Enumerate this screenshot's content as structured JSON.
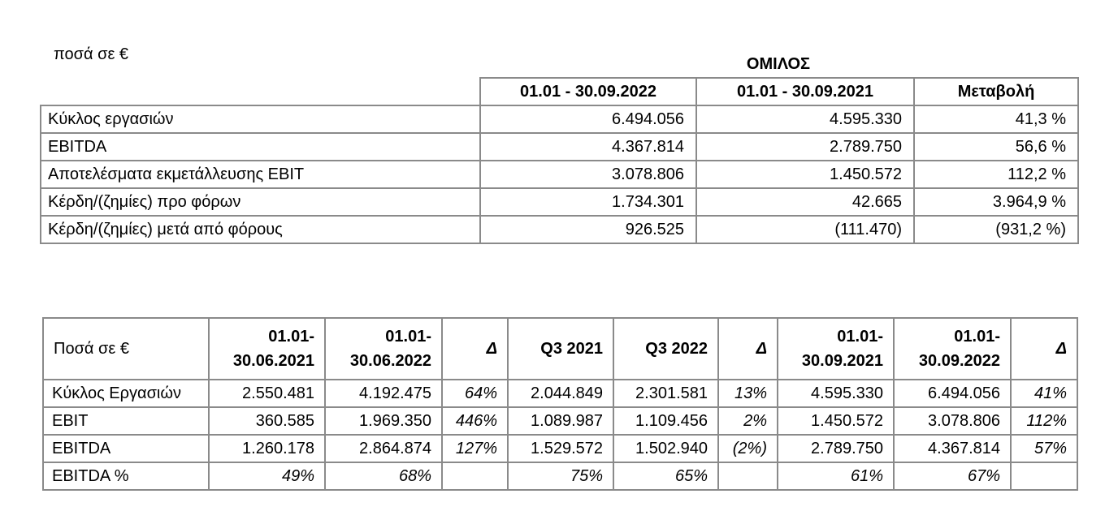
{
  "summary": {
    "note": "ποσά σε €",
    "group_title": "ΟΜΙΛΟΣ",
    "headers": [
      "01.01 - 30.09.2022",
      "01.01 - 30.09.2021",
      "Μεταβολή"
    ],
    "rows": [
      {
        "label": "Κύκλος εργασιών",
        "values": [
          "6.494.056",
          "4.595.330",
          "41,3 %"
        ]
      },
      {
        "label": "EBITDA",
        "values": [
          "4.367.814",
          "2.789.750",
          "56,6 %"
        ]
      },
      {
        "label": "Αποτελέσματα εκμετάλλευσης EBIT",
        "values": [
          "3.078.806",
          "1.450.572",
          "112,2 %"
        ]
      },
      {
        "label": "Κέρδη/(ζημίες) προ φόρων",
        "values": [
          "1.734.301",
          "42.665",
          "3.964,9 %"
        ]
      },
      {
        "label": "Κέρδη/(ζημίες) μετά από φόρους",
        "values": [
          "926.525",
          "(111.470)",
          "(931,2 %)"
        ]
      }
    ]
  },
  "quarterly": {
    "corner_label": "Ποσά σε €",
    "headers": [
      {
        "line1": "01.01-",
        "line2": "30.06.2021"
      },
      {
        "line1": "01.01-",
        "line2": "30.06.2022"
      },
      {
        "line1": "Δ",
        "line2": ""
      },
      {
        "line1": "Q3 2021",
        "line2": ""
      },
      {
        "line1": "Q3 2022",
        "line2": ""
      },
      {
        "line1": "Δ",
        "line2": ""
      },
      {
        "line1": "01.01-",
        "line2": "30.09.2021"
      },
      {
        "line1": "01.01-",
        "line2": "30.09.2022"
      },
      {
        "line1": "Δ",
        "line2": ""
      }
    ],
    "rows": [
      {
        "label": "Κύκλος Εργασιών",
        "values": [
          "2.550.481",
          "4.192.475",
          "64%",
          "2.044.849",
          "2.301.581",
          "13%",
          "4.595.330",
          "6.494.056",
          "41%"
        ]
      },
      {
        "label": "EBIT",
        "values": [
          "360.585",
          "1.969.350",
          "446%",
          "1.089.987",
          "1.109.456",
          "2%",
          "1.450.572",
          "3.078.806",
          "112%"
        ]
      },
      {
        "label": "EBITDA",
        "values": [
          "1.260.178",
          "2.864.874",
          "127%",
          "1.529.572",
          "1.502.940",
          "(2%)",
          "2.789.750",
          "4.367.814",
          "57%"
        ]
      },
      {
        "label": "EBITDA %",
        "values": [
          "49%",
          "68%",
          "",
          "75%",
          "65%",
          "",
          "61%",
          "67%",
          ""
        ]
      }
    ]
  }
}
